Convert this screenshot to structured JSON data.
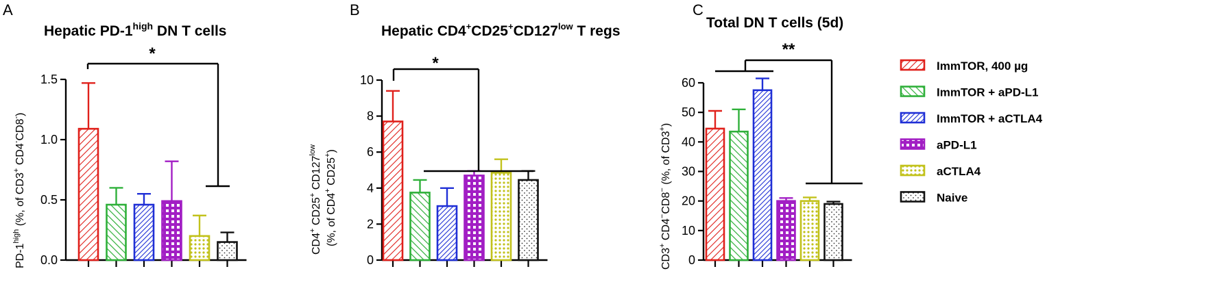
{
  "series_colors": {
    "ImmTOR, 400 µg": "#e0201b",
    "ImmTOR + aPD-L1": "#2fb03a",
    "ImmTOR + aCTLA4": "#1f2fd6",
    "aPD-L1": "#a21fc4",
    "aCTLA4": "#c2c21c",
    "Naive": "#111111"
  },
  "chart_data": [
    {
      "type": "bar",
      "panel": "A",
      "title": "Hepatic PD-1",
      "title_sup": "high",
      "title_rest": " DN T cells",
      "ylabel_parts": [
        "PD-1",
        "high",
        " (%, of CD3",
        "+",
        " CD4",
        "-",
        "CD8",
        "-",
        ")"
      ],
      "ylim": [
        0,
        1.5
      ],
      "yticks": [
        "0.0",
        "0.5",
        "1.0",
        "1.5"
      ],
      "categories": [
        "ImmTOR, 400 µg",
        "ImmTOR + aPD-L1",
        "ImmTOR + aCTLA4",
        "aPD-L1",
        "aCTLA4",
        "Naive"
      ],
      "values": [
        1.09,
        0.46,
        0.46,
        0.49,
        0.2,
        0.15
      ],
      "errors": [
        0.38,
        0.14,
        0.09,
        0.33,
        0.17,
        0.08
      ],
      "significance": "*"
    },
    {
      "type": "bar",
      "panel": "B",
      "title": "Hepatic CD4",
      "title_sup1": "+",
      "title_mid1": "CD25",
      "title_sup2": "+",
      "title_mid2": "CD127",
      "title_sup3": "low",
      "title_rest": " T regs",
      "ylabel_line1_parts": [
        "CD4",
        "+",
        " CD25",
        "+",
        " CD127",
        "low"
      ],
      "ylabel_line2_parts": [
        "(%, of CD4",
        "+",
        " CD25",
        "+",
        ")"
      ],
      "ylim": [
        0,
        10
      ],
      "yticks": [
        "0",
        "2",
        "4",
        "6",
        "8",
        "10"
      ],
      "categories": [
        "ImmTOR, 400 µg",
        "ImmTOR + aPD-L1",
        "ImmTOR + aCTLA4",
        "aPD-L1",
        "aCTLA4",
        "Naive"
      ],
      "values": [
        7.7,
        3.75,
        3.0,
        4.7,
        4.85,
        4.45
      ],
      "errors": [
        1.7,
        0.7,
        1.0,
        0.25,
        0.75,
        0.5
      ],
      "significance": "*"
    },
    {
      "type": "bar",
      "panel": "C",
      "title": "Total DN T cells (5d)",
      "ylabel_parts": [
        "CD3",
        "+",
        " CD4",
        "−",
        "CD8",
        "−",
        " (%, of CD3",
        "+",
        ")"
      ],
      "ylim": [
        0,
        60
      ],
      "yticks": [
        "0",
        "10",
        "20",
        "30",
        "40",
        "50",
        "60"
      ],
      "categories": [
        "ImmTOR, 400 µg",
        "ImmTOR + aPD-L1",
        "ImmTOR + aCTLA4",
        "aPD-L1",
        "aCTLA4",
        "Naive"
      ],
      "values": [
        44.5,
        43.5,
        57.5,
        20.0,
        20.0,
        19.0
      ],
      "errors": [
        6.0,
        7.5,
        4.0,
        1.0,
        1.2,
        0.8
      ],
      "significance": "**"
    }
  ],
  "legend": [
    {
      "label": "ImmTOR, 400 µg",
      "color": "#e0201b",
      "pattern": "diag-left"
    },
    {
      "label": "ImmTOR + aPD-L1",
      "color": "#2fb03a",
      "pattern": "diag-right"
    },
    {
      "label": "ImmTOR + aCTLA4",
      "color": "#1f2fd6",
      "pattern": "diag-left-dense"
    },
    {
      "label": "aPD-L1",
      "color": "#a21fc4",
      "pattern": "grid"
    },
    {
      "label": "aCTLA4",
      "color": "#c2c21c",
      "pattern": "dots"
    },
    {
      "label": "Naive",
      "color": "#111111",
      "pattern": "sparse-dots"
    }
  ]
}
